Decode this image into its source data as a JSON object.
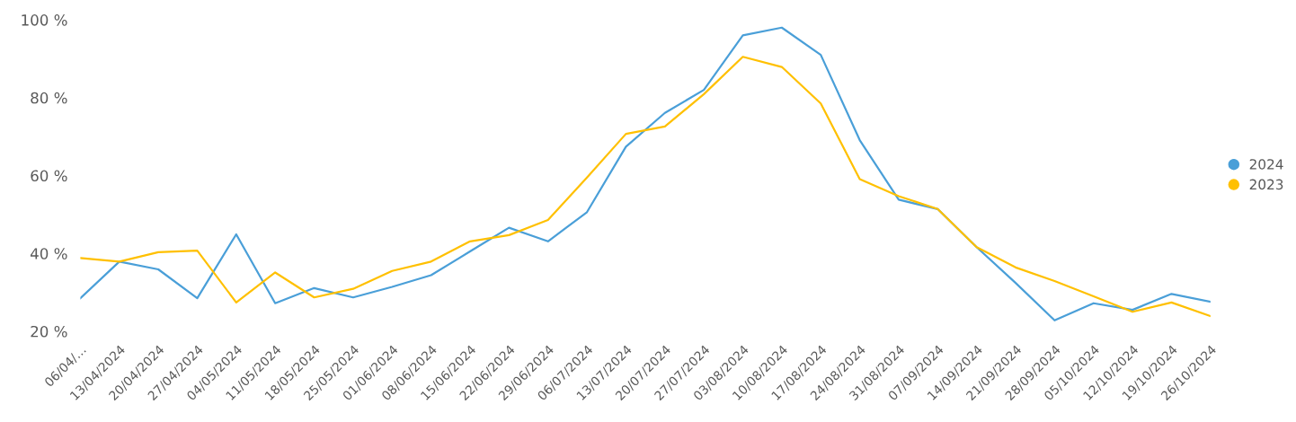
{
  "chart_data": {
    "type": "line",
    "categories": [
      "06/04/…",
      "13/04/2024",
      "20/04/2024",
      "27/04/2024",
      "04/05/2024",
      "11/05/2024",
      "18/05/2024",
      "25/05/2024",
      "01/06/2024",
      "08/06/2024",
      "15/06/2024",
      "22/06/2024",
      "29/06/2024",
      "06/07/2024",
      "13/07/2024",
      "20/07/2024",
      "27/07/2024",
      "03/08/2024",
      "10/08/2024",
      "17/08/2024",
      "24/08/2024",
      "31/08/2024",
      "07/09/2024",
      "14/09/2024",
      "21/09/2024",
      "28/09/2024",
      "05/10/2024",
      "12/10/2024",
      "19/10/2024",
      "26/10/2024"
    ],
    "series": [
      {
        "name": "2024",
        "color": "#4a9fd8",
        "values": [
          28.5,
          37.9,
          35.9,
          28.5,
          44.9,
          27.2,
          31.1,
          28.7,
          31.4,
          34.4,
          40.5,
          46.6,
          43.1,
          50.6,
          67.4,
          76.1,
          82.0,
          96.0,
          98.0,
          91.0,
          69.1,
          53.8,
          51.4,
          41.6,
          32.4,
          22.8,
          27.2,
          25.5,
          29.6,
          27.6
        ]
      },
      {
        "name": "2023",
        "color": "#ffc000",
        "values": [
          38.8,
          37.9,
          40.3,
          40.7,
          27.4,
          35.1,
          28.7,
          30.9,
          35.5,
          37.9,
          43.1,
          44.7,
          48.6,
          59.5,
          70.7,
          72.6,
          80.9,
          90.5,
          87.9,
          78.5,
          59.1,
          54.7,
          51.4,
          41.6,
          36.4,
          32.9,
          29.0,
          25.0,
          27.4,
          23.9
        ]
      }
    ],
    "ylim": [
      20,
      100
    ],
    "yticks": [
      {
        "value": 20,
        "label": "20 %"
      },
      {
        "value": 40,
        "label": "40 %"
      },
      {
        "value": 60,
        "label": "60 %"
      },
      {
        "value": 80,
        "label": "80 %"
      },
      {
        "value": 100,
        "label": "100 %"
      }
    ],
    "grid": false,
    "legend": "right",
    "marker": "none",
    "line_style": "solid"
  }
}
